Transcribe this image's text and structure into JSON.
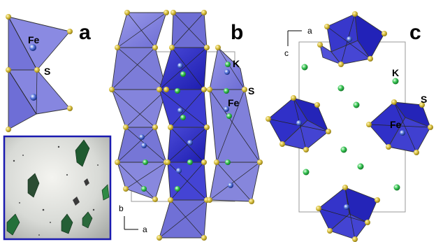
{
  "panels": {
    "a": {
      "letter": "a",
      "fe_label": "Fe",
      "s_label": "S"
    },
    "b": {
      "letter": "b",
      "k_label": "K",
      "s_label": "S",
      "fe_label": "Fe",
      "axis_vertical": "b",
      "axis_horizontal": "a"
    },
    "c": {
      "letter": "c",
      "k_label": "K",
      "s_label": "S",
      "fe_label": "Fe",
      "axis_horizontal": "a",
      "axis_vertical": "c"
    }
  },
  "colors": {
    "tetra_light": "#8080e0",
    "tetra_dark": "#3030c8",
    "sulfur": "#d8c040",
    "iron": "#1f3fa8",
    "potassium": "#2db84a",
    "photo_border": "#1a1ab0",
    "crystal": "#1f6a35"
  }
}
